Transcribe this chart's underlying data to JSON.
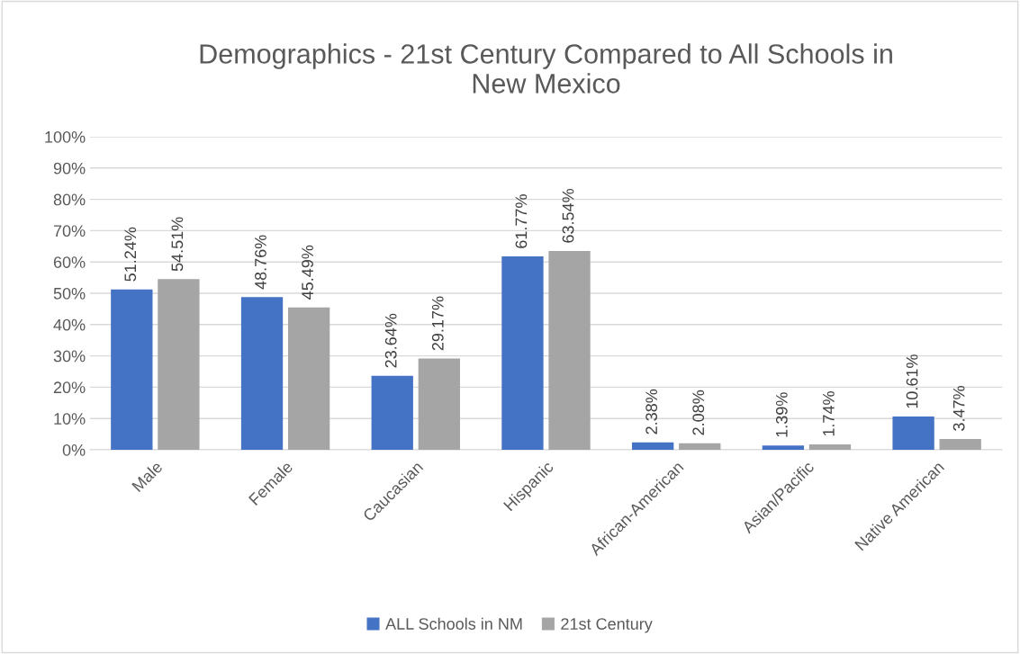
{
  "chart_data": {
    "type": "bar",
    "title": "Demographics - 21st Century Compared to All Schools in\nNew Mexico",
    "categories": [
      "Male",
      "Female",
      "Caucasian",
      "Hispanic",
      "African-American",
      "Asian/Pacific",
      "Native American"
    ],
    "series": [
      {
        "name": "ALL Schools in NM",
        "color": "#4472c4",
        "values": [
          51.24,
          48.76,
          23.64,
          61.77,
          2.38,
          1.39,
          10.61
        ],
        "value_labels": [
          "51.24%",
          "48.76%",
          "23.64%",
          "61.77%",
          "2.38%",
          "1.39%",
          "10.61%"
        ]
      },
      {
        "name": "21st Century",
        "color": "#a5a5a5",
        "values": [
          54.51,
          45.49,
          29.17,
          63.54,
          2.08,
          1.74,
          3.47
        ],
        "value_labels": [
          "54.51%",
          "45.49%",
          "29.17%",
          "63.54%",
          "2.08%",
          "1.74%",
          "3.47%"
        ]
      }
    ],
    "ylim": [
      0,
      100
    ],
    "yticks": [
      {
        "value": 0,
        "label": "0%"
      },
      {
        "value": 10,
        "label": "10%"
      },
      {
        "value": 20,
        "label": "20%"
      },
      {
        "value": 30,
        "label": "30%"
      },
      {
        "value": 40,
        "label": "40%"
      },
      {
        "value": 50,
        "label": "50%"
      },
      {
        "value": 60,
        "label": "60%"
      },
      {
        "value": 70,
        "label": "70%"
      },
      {
        "value": 80,
        "label": "80%"
      },
      {
        "value": 90,
        "label": "90%"
      },
      {
        "value": 100,
        "label": "100%"
      }
    ],
    "grid": "y",
    "legend": "bottom"
  }
}
